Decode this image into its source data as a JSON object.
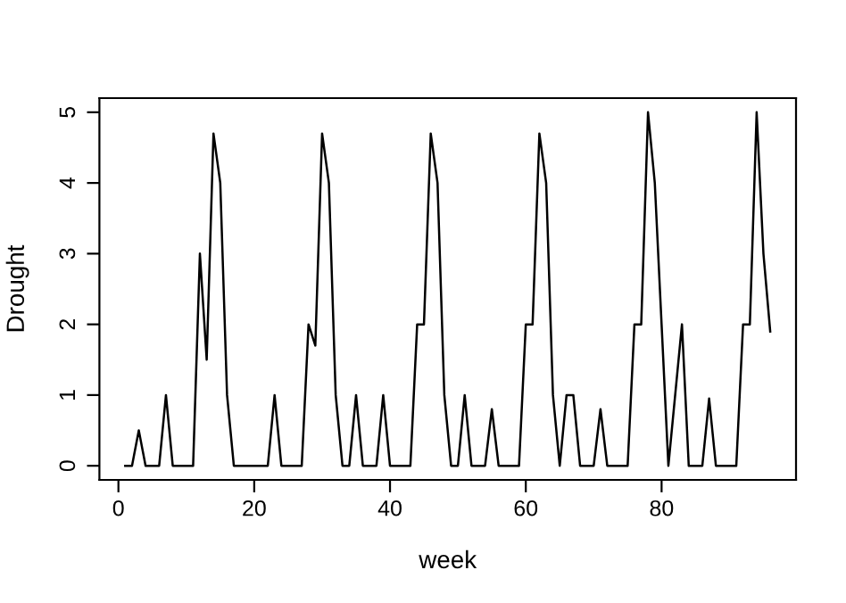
{
  "chart_data": {
    "type": "line",
    "xlabel": "week",
    "ylabel": "Drought",
    "x": [
      1,
      2,
      3,
      4,
      5,
      6,
      7,
      8,
      9,
      10,
      11,
      12,
      13,
      14,
      15,
      16,
      17,
      18,
      19,
      20,
      21,
      22,
      23,
      24,
      25,
      26,
      27,
      28,
      29,
      30,
      31,
      32,
      33,
      34,
      35,
      36,
      37,
      38,
      39,
      40,
      41,
      42,
      43,
      44,
      45,
      46,
      47,
      48,
      49,
      50,
      51,
      52,
      53,
      54,
      55,
      56,
      57,
      58,
      59,
      60,
      61,
      62,
      63,
      64,
      65,
      66,
      67,
      68,
      69,
      70,
      71,
      72,
      73,
      74,
      75,
      76,
      77,
      78,
      79,
      80,
      81,
      82,
      83,
      84,
      85,
      86,
      87,
      88,
      89,
      90,
      91,
      92,
      93,
      94,
      95,
      96
    ],
    "series": [
      {
        "color": "#000000",
        "values": [
          0,
          0,
          0.5,
          0,
          0,
          0,
          1,
          0,
          0,
          0,
          0,
          3,
          1.5,
          4.7,
          4,
          1,
          0,
          0,
          0,
          0,
          0,
          0,
          1,
          0,
          0,
          0,
          0,
          2,
          1.7,
          4.7,
          4,
          1,
          0,
          0,
          1,
          0,
          0,
          0,
          1,
          0,
          0,
          0,
          0,
          2,
          2,
          4.7,
          4,
          1,
          0,
          0,
          1,
          0,
          0,
          0,
          0.8,
          0,
          0,
          0,
          0,
          2,
          2,
          4.7,
          4,
          1,
          0,
          1,
          1,
          0,
          0,
          0,
          0.8,
          0,
          0,
          0,
          0,
          2,
          2,
          5,
          4,
          2,
          0,
          1,
          2,
          0,
          0,
          0,
          0.95,
          0,
          0,
          0,
          0,
          2,
          2,
          5,
          3,
          1.9
        ]
      }
    ],
    "xlim": [
      -2.8,
      99.8
    ],
    "ylim": [
      -0.2,
      5.2
    ],
    "xticks": [
      0,
      20,
      40,
      60,
      80
    ],
    "yticks": [
      0,
      1,
      2,
      3,
      4,
      5
    ],
    "grid": false,
    "marker": "none",
    "line_style": "solid"
  }
}
